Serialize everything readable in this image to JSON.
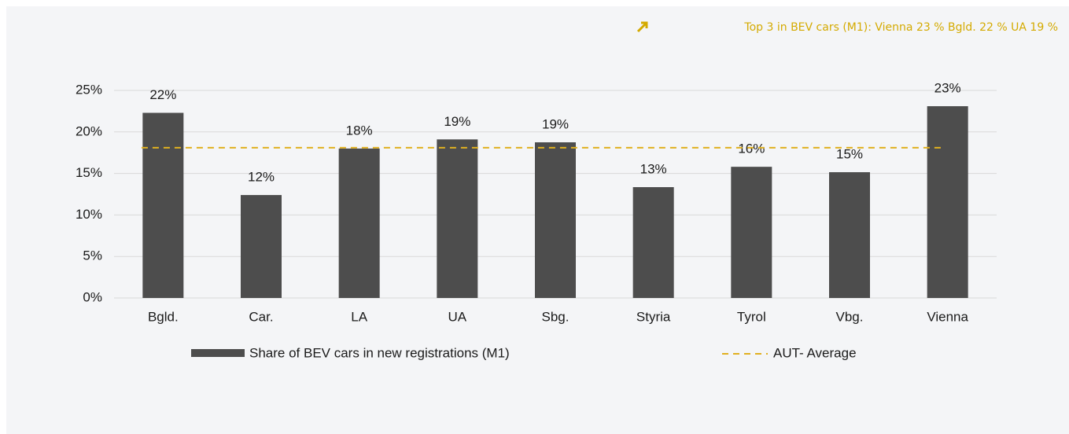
{
  "chart_data": {
    "type": "bar",
    "annotation": "Top 3 in BEV cars (M1): Vienna 23 % Bgld. 22 % UA 19 %",
    "categories": [
      "Bgld.",
      "Car.",
      "LA",
      "UA",
      "Sbg.",
      "Styria",
      "Tyrol",
      "Vbg.",
      "Vienna"
    ],
    "series": [
      {
        "name": "Share of BEV cars in new registrations (M1)",
        "color": "#4d4d4d",
        "values": [
          22.3,
          12.4,
          18.0,
          19.1,
          18.75,
          13.35,
          15.8,
          15.15,
          23.1
        ],
        "value_labels": [
          "22%",
          "12%",
          "18%",
          "19%",
          "19%",
          "13%",
          "16%",
          "15%",
          "23%"
        ]
      }
    ],
    "reference_line": {
      "name": "AUT- Average",
      "value": 18.1,
      "color": "#e0b020",
      "style": "dashed"
    },
    "ylim": [
      0,
      25
    ],
    "yticks": [
      {
        "value": 0,
        "label": "0%"
      },
      {
        "value": 5,
        "label": "5%"
      },
      {
        "value": 10,
        "label": "10%"
      },
      {
        "value": 15,
        "label": "15%"
      },
      {
        "value": 20,
        "label": "20%"
      },
      {
        "value": 25,
        "label": "25%"
      }
    ],
    "grid": true
  }
}
